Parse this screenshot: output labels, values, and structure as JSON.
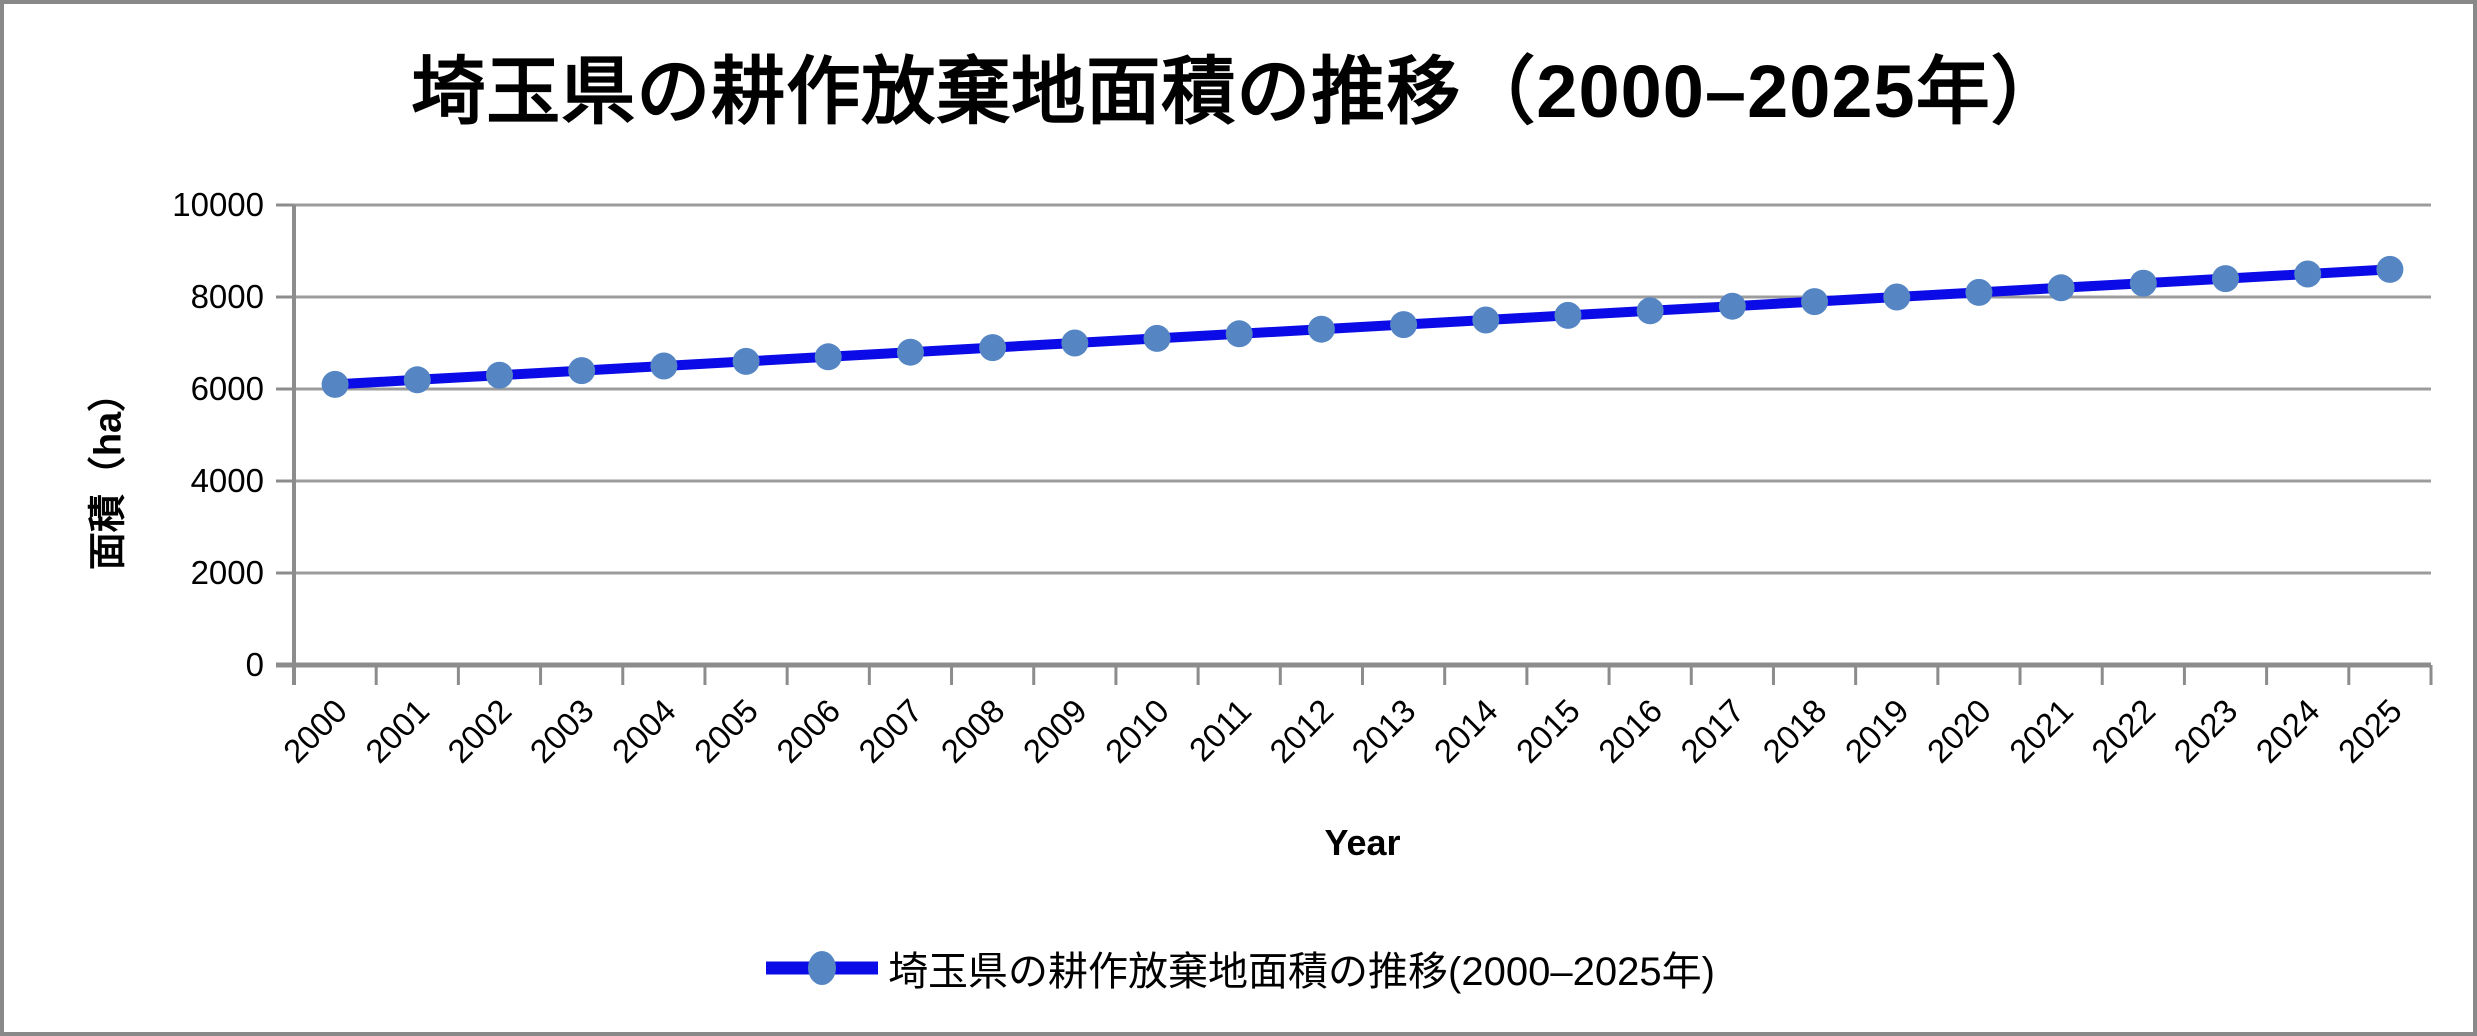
{
  "window": {
    "background": "#ffffff",
    "border_color": "#898989"
  },
  "chart_data": {
    "type": "line",
    "title": "埼玉県の耕作放棄地面積の推移（2000–2025年）",
    "xlabel": "Year",
    "ylabel": "面積（ha）",
    "categories": [
      "2000",
      "2001",
      "2002",
      "2003",
      "2004",
      "2005",
      "2006",
      "2007",
      "2008",
      "2009",
      "2010",
      "2011",
      "2012",
      "2013",
      "2014",
      "2015",
      "2016",
      "2017",
      "2018",
      "2019",
      "2020",
      "2021",
      "2022",
      "2023",
      "2024",
      "2025"
    ],
    "series": [
      {
        "name": "埼玉県の耕作放棄地面積の推移(2000–2025年)",
        "values": [
          6100,
          6200,
          6300,
          6400,
          6500,
          6600,
          6700,
          6800,
          6900,
          7000,
          7100,
          7200,
          7300,
          7400,
          7500,
          7600,
          7700,
          7800,
          7900,
          8000,
          8100,
          8200,
          8300,
          8400,
          8500,
          8600
        ]
      }
    ],
    "ylim": [
      0,
      10000
    ],
    "yticks": [
      0,
      2000,
      4000,
      6000,
      8000,
      10000
    ],
    "grid": true,
    "legend_position": "bottom",
    "colors": {
      "line": "#0b0be8",
      "marker": "#5586c3",
      "gridline": "#9c9c9c",
      "axis": "#8c8c8c",
      "text": "#000000"
    }
  }
}
